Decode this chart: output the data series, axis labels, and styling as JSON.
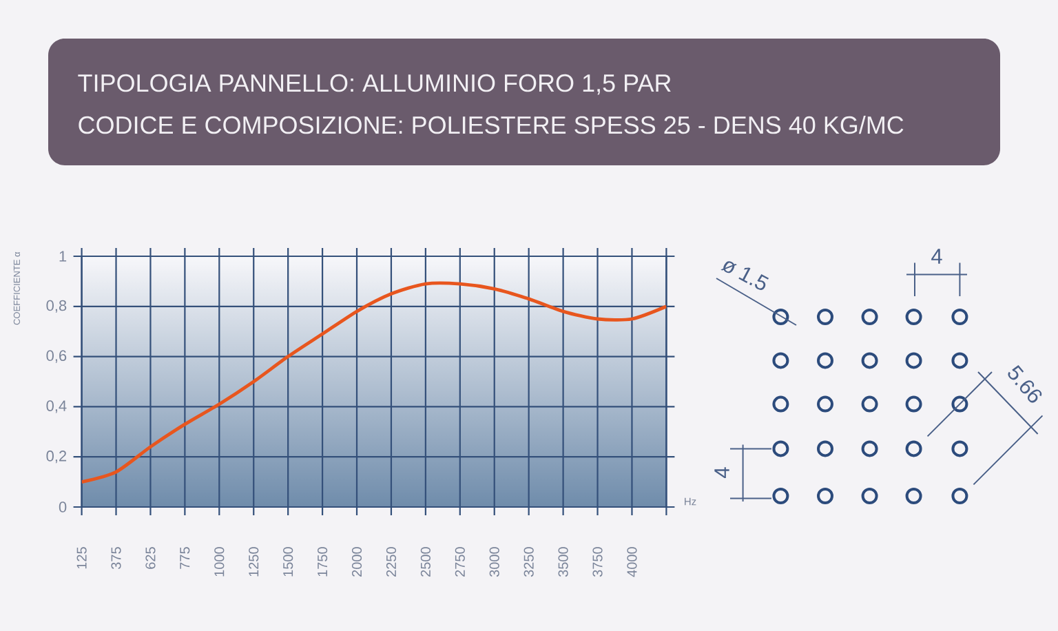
{
  "chart_data": {
    "type": "line",
    "title": "TIPOLOGIA PANNELLO: ALLUMINIO FORO 1,5 PAR",
    "subtitle": "CODICE E COMPOSIZIONE: POLIESTERE SPESS 25 - DENS 40 KG/MC",
    "xlabel": "Hz",
    "ylabel": "COEFFICIENTE α",
    "categories": [
      "125",
      "375",
      "625",
      "775",
      "1000",
      "1250",
      "1500",
      "1750",
      "2000",
      "2250",
      "2500",
      "2750",
      "3000",
      "3250",
      "3500",
      "3750",
      "4000",
      null
    ],
    "values": [
      0.1,
      0.14,
      0.24,
      0.33,
      0.41,
      0.5,
      0.6,
      0.69,
      0.78,
      0.85,
      0.89,
      0.89,
      0.87,
      0.83,
      0.78,
      0.75,
      0.75,
      0.8
    ],
    "color": "#e8561e",
    "ylim": [
      0,
      1
    ],
    "yticks": [
      0,
      {
        "value": 0.2,
        "label": "0,2"
      },
      {
        "value": 0.4,
        "label": "0,4"
      },
      {
        "value": 0.6,
        "label": "0,6"
      },
      {
        "value": 0.8,
        "label": "0,8"
      },
      1
    ],
    "grid": true,
    "annotations": [
      "ø 1.5",
      "4",
      "5.66",
      "4"
    ]
  }
}
